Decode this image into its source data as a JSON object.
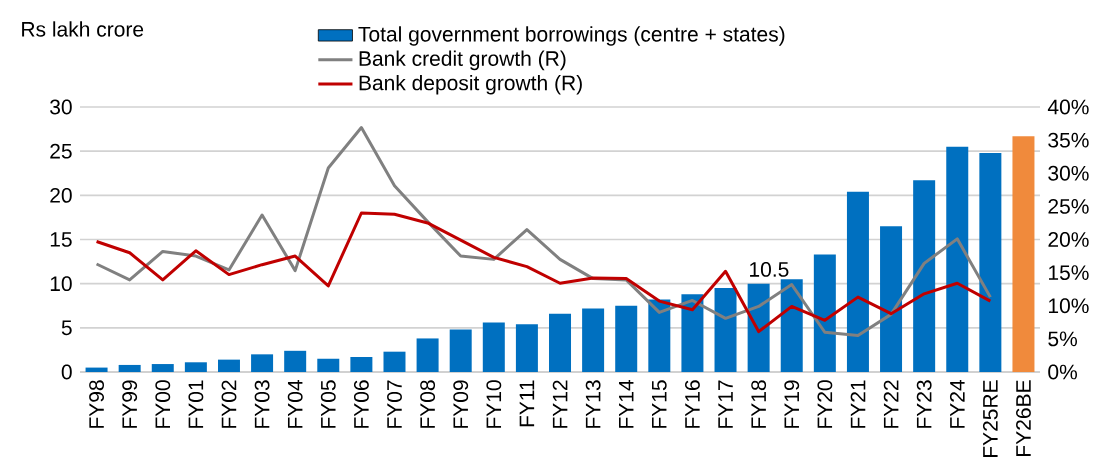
{
  "chart_data": {
    "type": "bar",
    "ylabel": "Rs lakh crore",
    "categories": [
      "FY98",
      "FY99",
      "FY00",
      "FY01",
      "FY02",
      "FY03",
      "FY04",
      "FY05",
      "FY06",
      "FY07",
      "FY08",
      "FY09",
      "FY10",
      "FY11",
      "FY12",
      "FY13",
      "FY14",
      "FY15",
      "FY16",
      "FY17",
      "FY18",
      "FY19",
      "FY20",
      "FY21",
      "FY22",
      "FY23",
      "FY24",
      "FY25RE",
      "FY26BE"
    ],
    "series": [
      {
        "name": "Total government borrowings (centre + states)",
        "color": "#0070c0",
        "colors": [
          "#0070c0",
          "#0070c0",
          "#0070c0",
          "#0070c0",
          "#0070c0",
          "#0070c0",
          "#0070c0",
          "#0070c0",
          "#0070c0",
          "#0070c0",
          "#0070c0",
          "#0070c0",
          "#0070c0",
          "#0070c0",
          "#0070c0",
          "#0070c0",
          "#0070c0",
          "#0070c0",
          "#0070c0",
          "#0070c0",
          "#0070c0",
          "#0070c0",
          "#0070c0",
          "#0070c0",
          "#0070c0",
          "#0070c0",
          "#0070c0",
          "#0070c0",
          "#f08a3c"
        ],
        "values": [
          0.5,
          0.8,
          0.9,
          1.1,
          1.4,
          2.0,
          2.4,
          1.5,
          1.7,
          2.3,
          3.8,
          4.8,
          5.6,
          5.4,
          6.6,
          7.2,
          7.5,
          8.2,
          8.8,
          9.5,
          10.0,
          10.5,
          13.3,
          20.4,
          16.5,
          21.7,
          25.5,
          24.8,
          26.7
        ]
      },
      {
        "name": "Bank credit growth (R)",
        "type": "line",
        "axis": "y2",
        "color": "#808080",
        "values": [
          16.3,
          13.9,
          18.2,
          17.5,
          15.4,
          23.7,
          15.3,
          30.8,
          36.9,
          28.1,
          22.7,
          17.5,
          17.0,
          21.5,
          17.0,
          14.1,
          13.9,
          9.0,
          10.8,
          8.1,
          9.9,
          13.2,
          6.0,
          5.5,
          8.7,
          16.4,
          20.1,
          11.3,
          null
        ]
      },
      {
        "name": "Bank deposit growth (R)",
        "type": "line",
        "axis": "y2",
        "color": "#c00000",
        "values": [
          19.7,
          18.0,
          13.9,
          18.3,
          14.7,
          16.2,
          17.5,
          13.0,
          24.0,
          23.8,
          22.5,
          19.9,
          17.3,
          15.9,
          13.4,
          14.2,
          14.1,
          10.7,
          9.4,
          15.2,
          6.1,
          9.9,
          7.8,
          11.3,
          8.8,
          11.8,
          13.4,
          10.7,
          null
        ]
      }
    ],
    "ylim": [
      0,
      30
    ],
    "yticks": [
      0,
      5,
      10,
      15,
      20,
      25,
      30
    ],
    "y2lim": [
      0,
      40
    ],
    "y2ticks": [
      {
        "value": 0,
        "label": "0%"
      },
      {
        "value": 5,
        "label": "5%"
      },
      {
        "value": 10,
        "label": "10%"
      },
      {
        "value": 15,
        "label": "15%"
      },
      {
        "value": 20,
        "label": "20%"
      },
      {
        "value": 25,
        "label": "25%"
      },
      {
        "value": 30,
        "label": "30%"
      },
      {
        "value": 35,
        "label": "35%"
      },
      {
        "value": 40,
        "label": "40%"
      }
    ],
    "annotations": [
      {
        "text": "10.5",
        "x": "FY19",
        "y": 10.5
      }
    ],
    "grid": "y",
    "legend": "top",
    "line_style": "solid"
  }
}
